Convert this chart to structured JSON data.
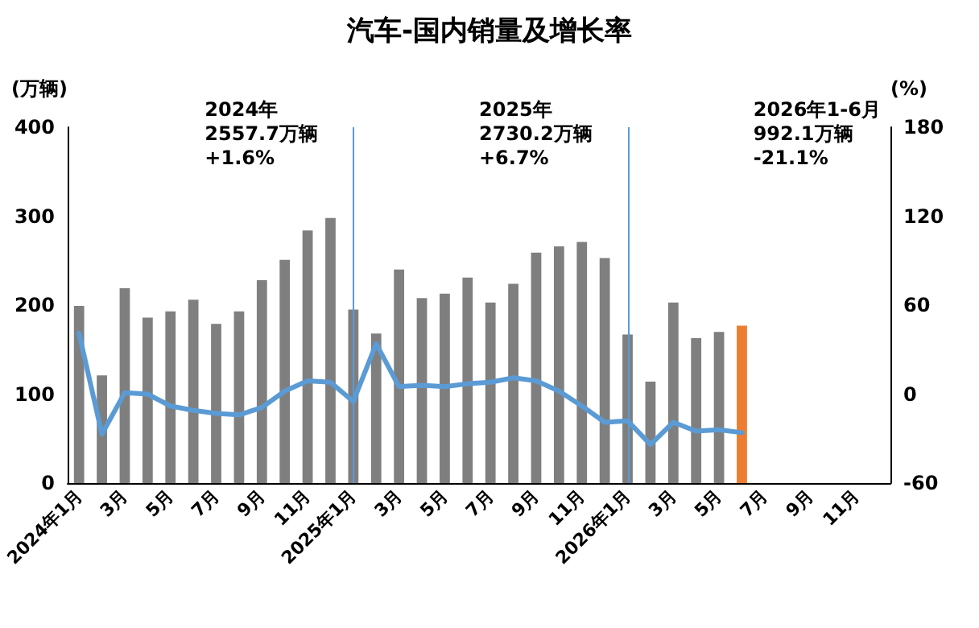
{
  "chart_data": {
    "type": "bar",
    "title": "汽车-国内销量及增长率",
    "ylabel": "(万辆)",
    "y2label": "(%)",
    "categories": [
      "2024年1月",
      null,
      "3月",
      null,
      "5月",
      null,
      "7月",
      null,
      "9月",
      null,
      "11月",
      null,
      "2025年1月",
      null,
      "3月",
      null,
      "5月",
      null,
      "7月",
      null,
      "9月",
      null,
      "11月",
      null,
      "2026年1月",
      null,
      "3月",
      null,
      "5月",
      null,
      "7月",
      null,
      "9月",
      null,
      "11月",
      null
    ],
    "series": [
      {
        "colors": [
          "#7f7f7f",
          "#7f7f7f",
          "#7f7f7f",
          "#7f7f7f",
          "#7f7f7f",
          "#7f7f7f",
          "#7f7f7f",
          "#7f7f7f",
          "#7f7f7f",
          "#7f7f7f",
          "#7f7f7f",
          "#7f7f7f",
          "#7f7f7f",
          "#7f7f7f",
          "#7f7f7f",
          "#7f7f7f",
          "#7f7f7f",
          "#7f7f7f",
          "#7f7f7f",
          "#7f7f7f",
          "#7f7f7f",
          "#7f7f7f",
          "#7f7f7f",
          "#7f7f7f",
          "#7f7f7f",
          "#7f7f7f",
          "#7f7f7f",
          "#7f7f7f",
          "#7f7f7f",
          "#ed7d31",
          null,
          null,
          null,
          null,
          null,
          null
        ],
        "values": [
          199,
          121,
          219,
          186,
          193,
          206,
          179,
          193,
          228,
          251,
          284,
          298,
          195,
          168,
          240,
          208,
          213,
          231,
          203,
          224,
          259,
          266,
          271,
          253,
          167,
          114,
          203,
          163,
          170,
          177,
          null,
          null,
          null,
          null,
          null,
          null
        ]
      },
      {
        "type": "line",
        "axis": "y2",
        "color": "#5b9bd5",
        "values": [
          41,
          -27,
          1,
          0,
          -8,
          -11,
          -13,
          -14,
          -9,
          2,
          9,
          8,
          -5,
          34,
          5,
          6,
          5,
          7,
          8,
          11,
          9,
          2,
          -8,
          -19,
          -18,
          -34,
          -19,
          -25,
          -24,
          -26,
          null,
          null,
          null,
          null,
          null,
          null
        ]
      }
    ],
    "ylim": [
      0,
      400
    ],
    "yticks": [
      0,
      100,
      200,
      300,
      400
    ],
    "y2lim": [
      -60,
      180
    ],
    "y2ticks": [
      -60,
      0,
      60,
      120,
      180
    ],
    "ref_lines": [
      {
        "axis": "x",
        "value": "2025年1月",
        "color": "#5b9bd5"
      },
      {
        "axis": "x",
        "value": "2026年1月",
        "color": "#5b9bd5"
      }
    ],
    "annotations": [
      {
        "text": "2024年"
      },
      {
        "text": "2557.7万辆"
      },
      {
        "text": "+1.6%"
      },
      {
        "text": "2025年"
      },
      {
        "text": "2730.2万辆"
      },
      {
        "text": "+6.7%"
      },
      {
        "text": "2026年1-6月"
      },
      {
        "text": "992.1万辆"
      },
      {
        "text": "-21.1%"
      }
    ],
    "grid": false,
    "marker": "none",
    "line_style": "solid"
  }
}
